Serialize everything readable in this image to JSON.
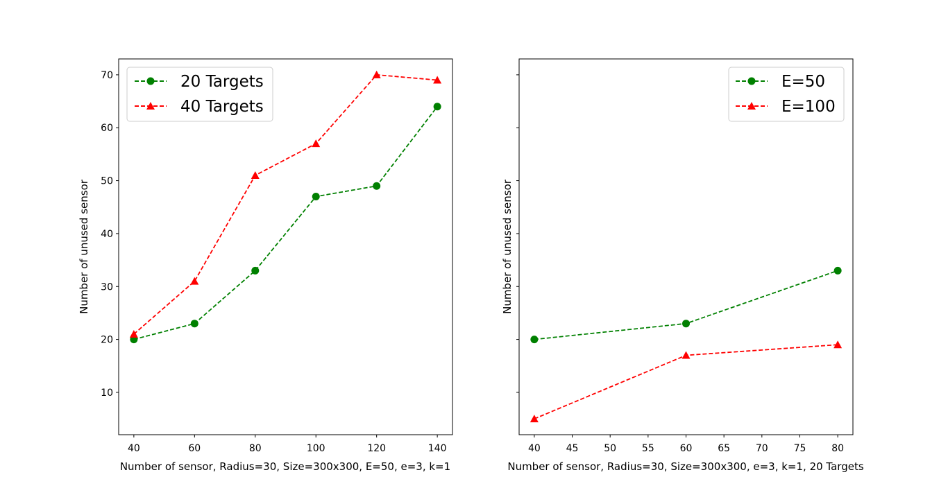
{
  "chart_data": [
    {
      "type": "line",
      "xlabel": "Number of sensor, Radius=30, Size=300x300, E=50, e=3, k=1",
      "ylabel": "Number of unused sensor",
      "x": [
        40,
        60,
        80,
        100,
        120,
        140
      ],
      "xlim": [
        35,
        145
      ],
      "ylim": [
        2,
        73
      ],
      "xticks": [
        40,
        60,
        80,
        100,
        120,
        140
      ],
      "yticks": [
        10,
        20,
        30,
        40,
        50,
        60,
        70
      ],
      "ytick_labels_shown": true,
      "grid": false,
      "legend_position": "upper left",
      "series": [
        {
          "name": "20 Targets",
          "values": [
            20,
            23,
            33,
            47,
            49,
            64
          ],
          "color": "#008000",
          "marker": "circle",
          "linestyle": "dashed"
        },
        {
          "name": "40 Targets",
          "values": [
            21,
            31,
            51,
            57,
            70,
            69
          ],
          "color": "#ff0000",
          "marker": "triangle",
          "linestyle": "dashed"
        }
      ]
    },
    {
      "type": "line",
      "xlabel": "Number of sensor, Radius=30, Size=300x300, e=3, k=1, 20 Targets",
      "ylabel": "Number of unused sensor",
      "x": [
        40,
        60,
        80
      ],
      "xlim": [
        38,
        82
      ],
      "ylim": [
        2,
        73
      ],
      "xticks": [
        40,
        45,
        50,
        55,
        60,
        65,
        70,
        75,
        80
      ],
      "yticks": [
        10,
        20,
        30,
        40,
        50,
        60,
        70
      ],
      "ytick_labels_shown": false,
      "grid": false,
      "legend_position": "upper right",
      "series": [
        {
          "name": "E=50",
          "values": [
            20,
            23,
            33
          ],
          "color": "#008000",
          "marker": "circle",
          "linestyle": "dashed"
        },
        {
          "name": "E=100",
          "values": [
            5,
            17,
            19
          ],
          "color": "#ff0000",
          "marker": "triangle",
          "linestyle": "dashed"
        }
      ]
    }
  ]
}
